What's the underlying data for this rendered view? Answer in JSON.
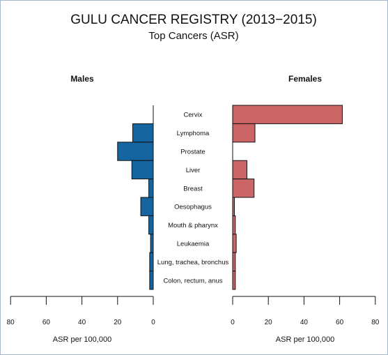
{
  "chart_data": {
    "type": "bar",
    "orientation": "horizontal",
    "layout": "back-to-back",
    "title": "GULU CANCER REGISTRY (2013−2015)",
    "subtitle": "Top Cancers (ASR)",
    "categories": [
      "Cervix",
      "Lymphoma",
      "Prostate",
      "Liver",
      "Breast",
      "Oesophagus",
      "Mouth & pharynx",
      "Leukaemia",
      "Lung, trachea, bronchus",
      "Colon, rectum, anus"
    ],
    "series": [
      {
        "name": "Males",
        "color": "#1565a0",
        "values": [
          0,
          11.5,
          20,
          12,
          2.5,
          7,
          2.5,
          1.5,
          2,
          2
        ]
      },
      {
        "name": "Females",
        "color": "#cc6666",
        "values": [
          61.5,
          12.5,
          0,
          8,
          12,
          1,
          1.5,
          2,
          1.5,
          1.5
        ]
      }
    ],
    "xlabel": "ASR per 100,000",
    "xlim": [
      0,
      80
    ],
    "xticks": [
      80,
      60,
      40,
      20,
      0
    ],
    "xticks_right": [
      0,
      20,
      40,
      60,
      80
    ],
    "grid": false
  }
}
